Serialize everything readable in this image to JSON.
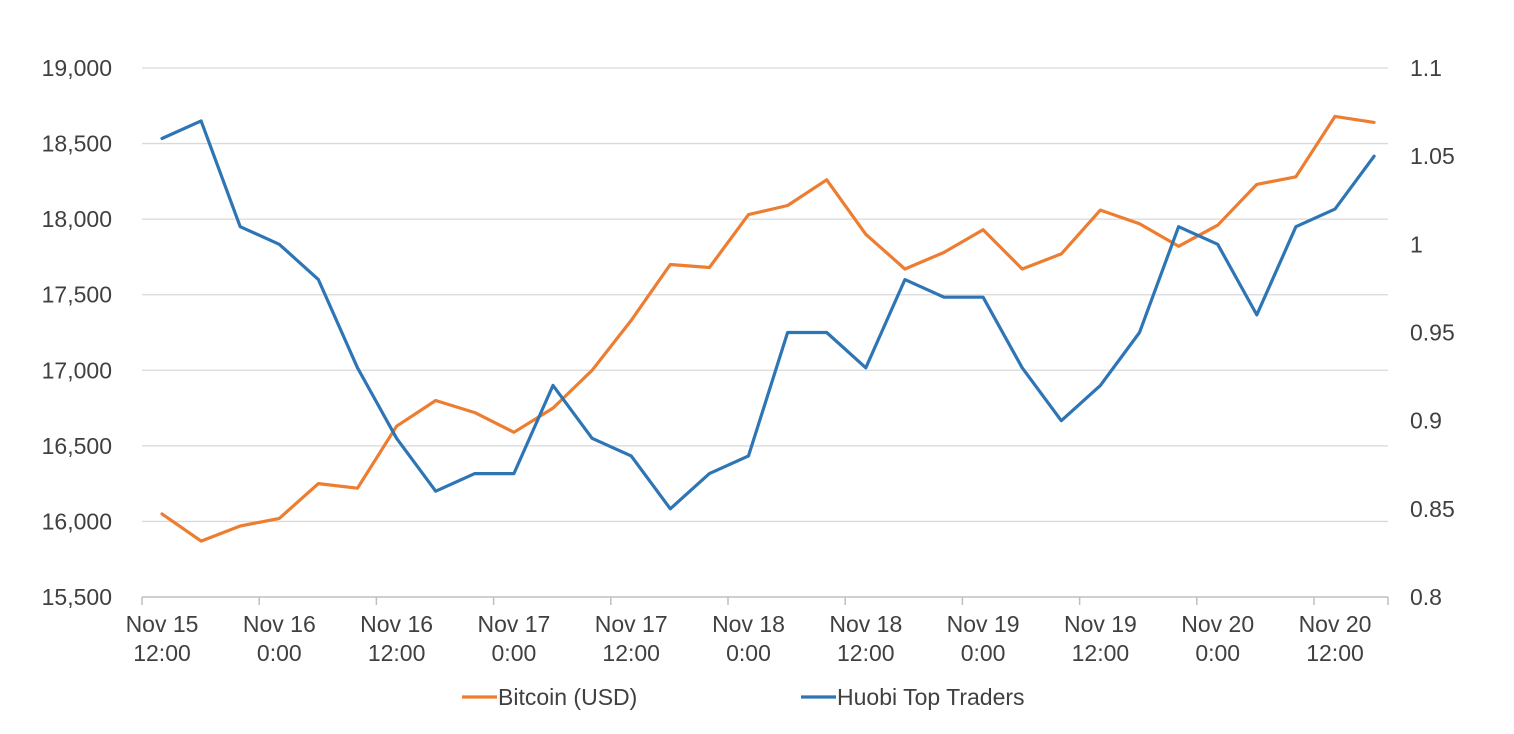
{
  "chart_data": {
    "type": "line",
    "x_categories": [
      "Nov 15 12:00",
      "Nov 15 16:00",
      "Nov 15 20:00",
      "Nov 16 0:00",
      "Nov 16 4:00",
      "Nov 16 8:00",
      "Nov 16 12:00",
      "Nov 16 16:00",
      "Nov 16 20:00",
      "Nov 17 0:00",
      "Nov 17 4:00",
      "Nov 17 8:00",
      "Nov 17 12:00",
      "Nov 17 16:00",
      "Nov 17 20:00",
      "Nov 18 0:00",
      "Nov 18 4:00",
      "Nov 18 8:00",
      "Nov 18 12:00",
      "Nov 18 16:00",
      "Nov 18 20:00",
      "Nov 19 0:00",
      "Nov 19 4:00",
      "Nov 19 8:00",
      "Nov 19 12:00",
      "Nov 19 16:00",
      "Nov 19 20:00",
      "Nov 20 0:00",
      "Nov 20 4:00",
      "Nov 20 8:00",
      "Nov 20 12:00",
      "Nov 20 16:00"
    ],
    "x_tick_labels": [
      {
        "line1": "Nov 15",
        "line2": "12:00"
      },
      {
        "line1": "Nov 16",
        "line2": "0:00"
      },
      {
        "line1": "Nov 16",
        "line2": "12:00"
      },
      {
        "line1": "Nov 17",
        "line2": "0:00"
      },
      {
        "line1": "Nov 17",
        "line2": "12:00"
      },
      {
        "line1": "Nov 18",
        "line2": "0:00"
      },
      {
        "line1": "Nov 18",
        "line2": "12:00"
      },
      {
        "line1": "Nov 19",
        "line2": "0:00"
      },
      {
        "line1": "Nov 19",
        "line2": "12:00"
      },
      {
        "line1": "Nov 20",
        "line2": "0:00"
      },
      {
        "line1": "Nov 20",
        "line2": "12:00"
      }
    ],
    "y_left": {
      "ylim": [
        15500,
        19000
      ],
      "ticks": [
        15500,
        16000,
        16500,
        17000,
        17500,
        18000,
        18500,
        19000
      ],
      "tick_labels": [
        "15,500",
        "16,000",
        "16,500",
        "17,000",
        "17,500",
        "18,000",
        "18,500",
        "19,000"
      ]
    },
    "y_right": {
      "ylim": [
        0.8,
        1.1
      ],
      "ticks": [
        0.8,
        0.85,
        0.9,
        0.95,
        1.0,
        1.05,
        1.1
      ],
      "tick_labels": [
        "0.8",
        "0.85",
        "0.9",
        "0.95",
        "1",
        "1.05",
        "1.1"
      ]
    },
    "series": [
      {
        "name": "Bitcoin (USD)",
        "axis": "left",
        "color": "#ED7D31",
        "values": [
          16050,
          15870,
          15970,
          16020,
          16250,
          16220,
          16630,
          16800,
          16720,
          16590,
          16750,
          17000,
          17330,
          17700,
          17680,
          18030,
          18090,
          18260,
          17900,
          17670,
          17780,
          17930,
          17670,
          17770,
          18060,
          17970,
          17820,
          17960,
          18230,
          18280,
          18680,
          18640
        ]
      },
      {
        "name": "Huobi Top Traders",
        "axis": "right",
        "color": "#2E75B6",
        "values": [
          1.06,
          1.07,
          1.01,
          1.0,
          0.98,
          0.93,
          0.89,
          0.86,
          0.87,
          0.87,
          0.92,
          0.89,
          0.88,
          0.85,
          0.87,
          0.88,
          0.95,
          0.95,
          0.93,
          0.98,
          0.97,
          0.97,
          0.93,
          0.9,
          0.92,
          0.95,
          1.01,
          1.0,
          0.96,
          1.01,
          1.02,
          1.05
        ]
      }
    ],
    "grid": true,
    "legend_position": "bottom",
    "gridline_color": "#D9D9D9",
    "axis_color": "#BFBFBF",
    "text_color": "#404040"
  }
}
